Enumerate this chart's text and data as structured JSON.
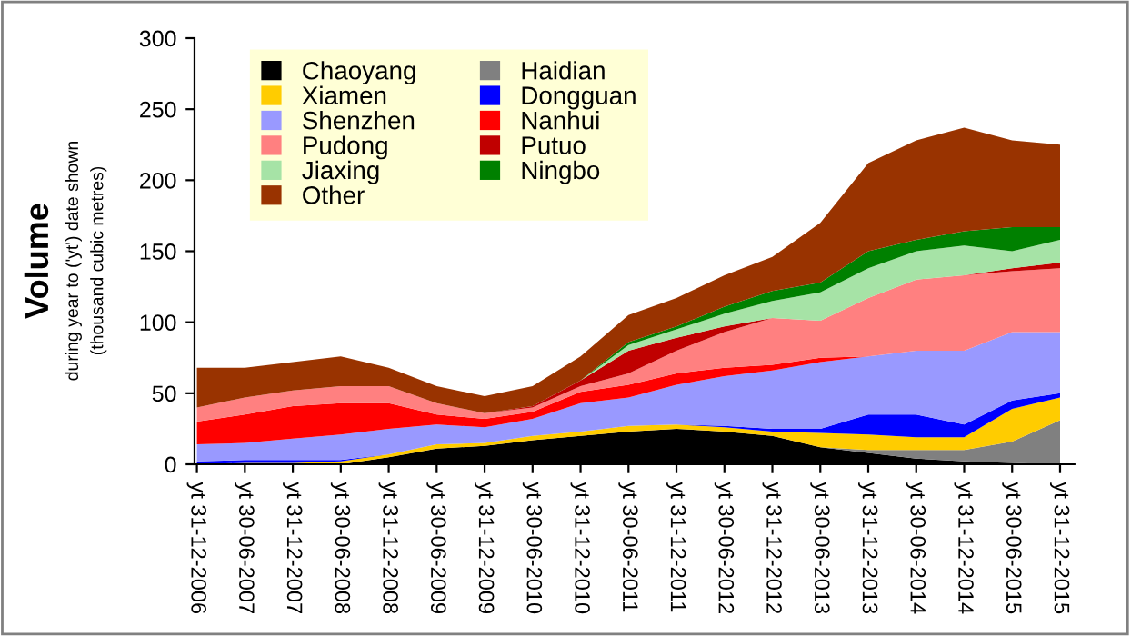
{
  "chart_data": {
    "type": "area",
    "stacked": true,
    "ylabel": "Volume",
    "annotations": [
      "during year to ('yt') date shown",
      "(thousand cubic metres)"
    ],
    "categories": [
      "yt 31-12-2006",
      "yt 30-06-2007",
      "yt 31-12-2007",
      "yt 30-06-2008",
      "yt 31-12-2008",
      "yt 30-06-2009",
      "yt 31-12-2009",
      "yt 30-06-2010",
      "yt 31-12-2010",
      "yt 30-06-2011",
      "yt 31-12-2011",
      "yt 30-06-2012",
      "yt 31-12-2012",
      "yt 30-06-2013",
      "yt 31-12-2013",
      "yt 30-06-2014",
      "yt 31-12-2014",
      "yt 30-06-2015",
      "yt 31-12-2015"
    ],
    "ylim": [
      0,
      300
    ],
    "yticks": [
      0,
      50,
      100,
      150,
      200,
      250,
      300
    ],
    "grid": false,
    "legend": "top left",
    "series": [
      {
        "name": "Chaoyang",
        "color": "#000000",
        "values": [
          0,
          0,
          0,
          0,
          5,
          11,
          13,
          17,
          20,
          23,
          25,
          23,
          20,
          12,
          8,
          4,
          2,
          1,
          0
        ]
      },
      {
        "name": "Haidian",
        "color": "#808080",
        "values": [
          0,
          0,
          0,
          0,
          0,
          0,
          0,
          0,
          0,
          0,
          0,
          0,
          0,
          0,
          2,
          6,
          8,
          15,
          31
        ]
      },
      {
        "name": "Xiamen",
        "color": "#ffcc00",
        "values": [
          0,
          1,
          1,
          2,
          2,
          3,
          2,
          3,
          3,
          4,
          3,
          3,
          3,
          10,
          11,
          9,
          9,
          23,
          16
        ]
      },
      {
        "name": "Dongguan",
        "color": "#0000ff",
        "values": [
          2,
          2,
          2,
          1,
          0,
          0,
          0,
          0,
          0,
          0,
          0,
          1,
          2,
          3,
          14,
          16,
          9,
          6,
          3
        ]
      },
      {
        "name": "Shenzhen",
        "color": "#9999ff",
        "values": [
          12,
          12,
          15,
          18,
          18,
          14,
          11,
          12,
          20,
          20,
          28,
          35,
          41,
          47,
          41,
          45,
          52,
          48,
          43
        ]
      },
      {
        "name": "Nanhui",
        "color": "#ff0000",
        "values": [
          16,
          20,
          23,
          22,
          18,
          7,
          6,
          5,
          8,
          9,
          8,
          6,
          4,
          3,
          0,
          0,
          0,
          0,
          0
        ]
      },
      {
        "name": "Pudong",
        "color": "#ff8080",
        "values": [
          10,
          12,
          11,
          12,
          12,
          8,
          4,
          3,
          4,
          8,
          16,
          25,
          33,
          26,
          41,
          50,
          53,
          43,
          45
        ]
      },
      {
        "name": "Putuo",
        "color": "#c00000",
        "values": [
          0,
          0,
          0,
          0,
          0,
          0,
          0,
          1,
          4,
          16,
          9,
          4,
          0,
          0,
          0,
          0,
          0,
          2,
          4
        ]
      },
      {
        "name": "Jiaxing",
        "color": "#a6e3a6",
        "values": [
          0,
          0,
          0,
          0,
          0,
          0,
          0,
          0,
          0,
          4,
          6,
          9,
          12,
          20,
          21,
          20,
          21,
          12,
          16
        ]
      },
      {
        "name": "Ningbo",
        "color": "#008000",
        "values": [
          0,
          0,
          0,
          0,
          0,
          0,
          0,
          0,
          0,
          2,
          2,
          5,
          7,
          7,
          12,
          8,
          10,
          17,
          9
        ]
      },
      {
        "name": "Other",
        "color": "#993300",
        "values": [
          28,
          21,
          20,
          21,
          13,
          12,
          12,
          14,
          17,
          19,
          20,
          22,
          24,
          42,
          62,
          70,
          73,
          61,
          58
        ]
      }
    ]
  }
}
